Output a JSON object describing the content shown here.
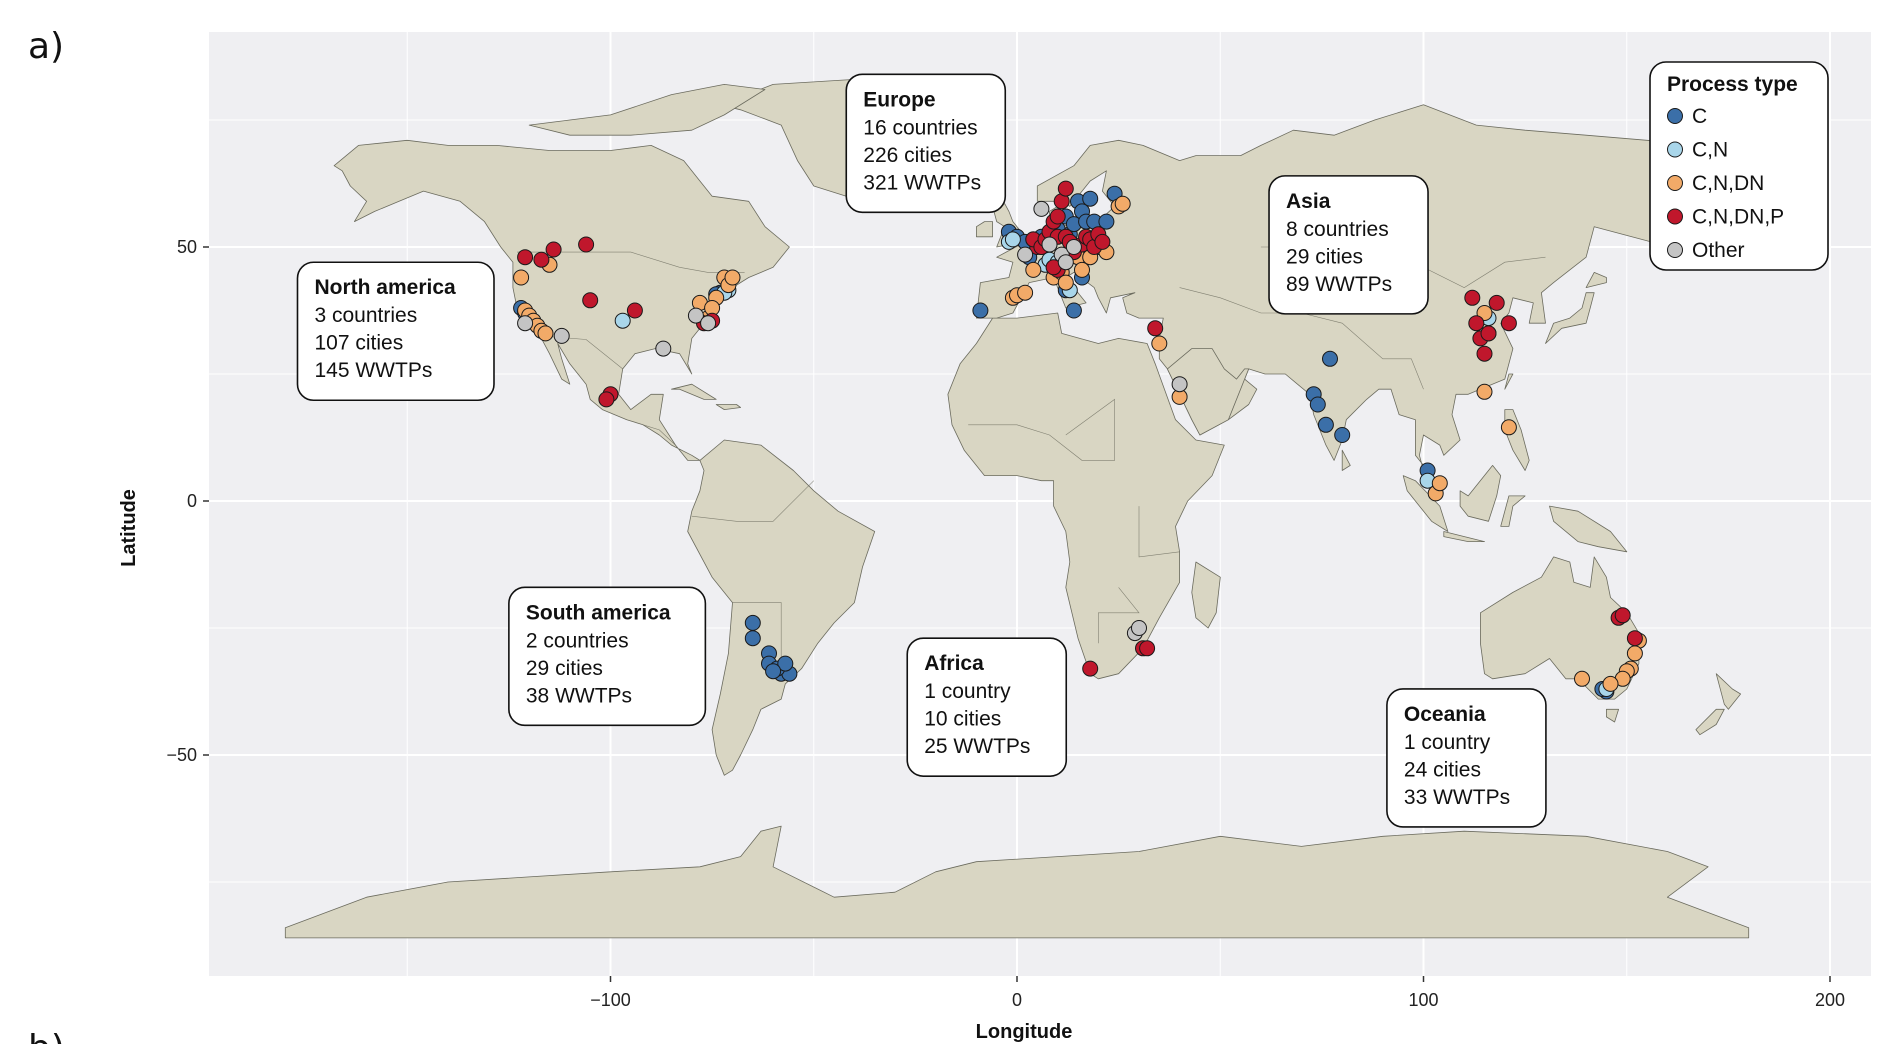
{
  "panel_label": "a)",
  "next_panel_label": "b)",
  "colors": {
    "panel_bg": "#efeff2",
    "grid": "#ffffff",
    "land": "#d9d6c3",
    "land_border": "#6b6b5e"
  },
  "chart_data": {
    "type": "scatter",
    "subtype": "world-map-points",
    "xlabel": "Longitude",
    "ylabel": "Latitude",
    "xlim": [
      -200,
      205
    ],
    "ylim": [
      -93,
      92
    ],
    "xticks": [
      -100,
      0,
      100,
      200
    ],
    "yticks": [
      -50,
      0,
      50
    ],
    "grid": true,
    "legend": {
      "title": "Process type",
      "placement": "top-right",
      "entries": [
        {
          "label": "C",
          "color": "#3b6fa8"
        },
        {
          "label": "C,N",
          "color": "#a9d6ea"
        },
        {
          "label": "C,N,DN",
          "color": "#f2aa68"
        },
        {
          "label": "C,N,DN,P",
          "color": "#c0172c"
        },
        {
          "label": "Other",
          "color": "#c4c4c4"
        }
      ]
    },
    "regions": [
      {
        "title": "North america",
        "lines": [
          "3 countries",
          "107 cities",
          "145 WWTPs"
        ],
        "anchor": [
          -177,
          47
        ]
      },
      {
        "title": "Europe",
        "lines": [
          "16 countries",
          "226 cities",
          "321 WWTPs"
        ],
        "anchor": [
          -42,
          84
        ]
      },
      {
        "title": "Asia",
        "lines": [
          "8 countries",
          "29 cities",
          "89 WWTPs"
        ],
        "anchor": [
          62,
          64
        ]
      },
      {
        "title": "South america",
        "lines": [
          "2 countries",
          "29 cities",
          "38 WWTPs"
        ],
        "anchor": [
          -125,
          -17
        ]
      },
      {
        "title": "Africa",
        "lines": [
          "1 country",
          "10 cities",
          "25 WWTPs"
        ],
        "anchor": [
          -27,
          -27
        ]
      },
      {
        "title": "Oceania",
        "lines": [
          "1 country",
          "24 cities",
          "33 WWTPs"
        ],
        "anchor": [
          91,
          -37
        ]
      }
    ],
    "series": [
      {
        "name": "C",
        "points": [
          [
            -122,
            38
          ],
          [
            -121,
            37
          ],
          [
            -73,
            41
          ],
          [
            -74,
            40.7
          ],
          [
            -9,
            37.5
          ],
          [
            -2,
            53
          ],
          [
            0,
            52
          ],
          [
            2,
            51
          ],
          [
            3,
            48
          ],
          [
            4,
            51.5
          ],
          [
            6,
            52
          ],
          [
            7,
            51
          ],
          [
            8,
            52.5
          ],
          [
            9,
            54
          ],
          [
            10,
            55.5
          ],
          [
            10,
            53.5
          ],
          [
            11,
            48
          ],
          [
            12,
            56
          ],
          [
            13,
            52.5
          ],
          [
            14,
            54.5
          ],
          [
            15,
            59
          ],
          [
            16,
            57
          ],
          [
            17,
            55
          ],
          [
            18,
            59.5
          ],
          [
            19,
            55
          ],
          [
            20,
            50
          ],
          [
            22,
            55
          ],
          [
            24,
            60.5
          ],
          [
            12,
            41.5
          ],
          [
            14,
            37.5
          ],
          [
            16,
            44
          ],
          [
            -65,
            -24
          ],
          [
            -65,
            -27
          ],
          [
            -61,
            -30
          ],
          [
            -61,
            -32
          ],
          [
            -58,
            -34
          ],
          [
            -56,
            -34
          ],
          [
            -59,
            -33
          ],
          [
            -57,
            -32
          ],
          [
            -60,
            -33.5
          ],
          [
            77,
            28
          ],
          [
            73,
            21
          ],
          [
            74,
            19
          ],
          [
            76,
            15
          ],
          [
            80,
            13
          ],
          [
            101,
            6
          ],
          [
            145,
            -37.5
          ],
          [
            144,
            -37
          ]
        ]
      },
      {
        "name": "C,N",
        "points": [
          [
            -97,
            35.5
          ],
          [
            -71,
            41.5
          ],
          [
            -72,
            41
          ],
          [
            -2,
            51
          ],
          [
            -1,
            51.5
          ],
          [
            7,
            46.5
          ],
          [
            8,
            47.5
          ],
          [
            13,
            41.5
          ],
          [
            10,
            47
          ],
          [
            101,
            4
          ],
          [
            116,
            36
          ],
          [
            145,
            -37
          ]
        ]
      },
      {
        "name": "C,N,DN",
        "points": [
          [
            -122,
            44
          ],
          [
            -121,
            37.5
          ],
          [
            -120,
            36.5
          ],
          [
            -119,
            35.5
          ],
          [
            -118,
            34.5
          ],
          [
            -117,
            33.5
          ],
          [
            -116,
            33
          ],
          [
            -115,
            46.5
          ],
          [
            -78,
            39
          ],
          [
            -76,
            36
          ],
          [
            -74,
            40
          ],
          [
            -75,
            38
          ],
          [
            -72,
            44
          ],
          [
            -71,
            42.5
          ],
          [
            -70,
            44
          ],
          [
            -1,
            40
          ],
          [
            0,
            40.5
          ],
          [
            2,
            41
          ],
          [
            4,
            45.5
          ],
          [
            6,
            50
          ],
          [
            8,
            50.5
          ],
          [
            9,
            44
          ],
          [
            11,
            45
          ],
          [
            12,
            43
          ],
          [
            15,
            48
          ],
          [
            16,
            45.5
          ],
          [
            18,
            48
          ],
          [
            20,
            51
          ],
          [
            22,
            49
          ],
          [
            25,
            58
          ],
          [
            26,
            58.5
          ],
          [
            35,
            31
          ],
          [
            40,
            20.5
          ],
          [
            103,
            1.5
          ],
          [
            104,
            3.5
          ],
          [
            115,
            21.5
          ],
          [
            116,
            33
          ],
          [
            121,
            14.5
          ],
          [
            115,
            37
          ],
          [
            153,
            -27.5
          ],
          [
            152,
            -30
          ],
          [
            151,
            -33
          ],
          [
            150,
            -33.5
          ],
          [
            149,
            -35
          ],
          [
            139,
            -35
          ],
          [
            146,
            -36
          ]
        ]
      },
      {
        "name": "C,N,DN,P",
        "points": [
          [
            -121,
            48
          ],
          [
            -117,
            47.5
          ],
          [
            -114,
            49.5
          ],
          [
            -106,
            50.5
          ],
          [
            -105,
            39.5
          ],
          [
            -94,
            37.5
          ],
          [
            -100,
            21
          ],
          [
            -101,
            20
          ],
          [
            -75,
            35.5
          ],
          [
            -77,
            35
          ],
          [
            5,
            50
          ],
          [
            4,
            51.5
          ],
          [
            6,
            50
          ],
          [
            7,
            51.5
          ],
          [
            8,
            53
          ],
          [
            9,
            55
          ],
          [
            10,
            56
          ],
          [
            11,
            59
          ],
          [
            12,
            61.5
          ],
          [
            10,
            52
          ],
          [
            12,
            52
          ],
          [
            13,
            51
          ],
          [
            14,
            49
          ],
          [
            16,
            50.5
          ],
          [
            17,
            52
          ],
          [
            18,
            51.5
          ],
          [
            19,
            50
          ],
          [
            20,
            52.5
          ],
          [
            21,
            51
          ],
          [
            10,
            45.5
          ],
          [
            9,
            46
          ],
          [
            34,
            34
          ],
          [
            31,
            -29
          ],
          [
            32,
            -29
          ],
          [
            18,
            -33
          ],
          [
            112,
            40
          ],
          [
            113,
            35
          ],
          [
            114,
            32
          ],
          [
            115,
            29
          ],
          [
            116,
            33
          ],
          [
            118,
            39
          ],
          [
            121,
            35
          ],
          [
            148,
            -23
          ],
          [
            149,
            -22.5
          ],
          [
            152,
            -27
          ]
        ]
      },
      {
        "name": "Other",
        "points": [
          [
            -121,
            35
          ],
          [
            -112,
            32.5
          ],
          [
            -87,
            30
          ],
          [
            -79,
            36.5
          ],
          [
            -76,
            35
          ],
          [
            6,
            57.5
          ],
          [
            2,
            48.5
          ],
          [
            8,
            50.5
          ],
          [
            11,
            48.5
          ],
          [
            12,
            47
          ],
          [
            14,
            50
          ],
          [
            40,
            23
          ],
          [
            29,
            -26
          ],
          [
            30,
            -25
          ]
        ]
      }
    ]
  }
}
